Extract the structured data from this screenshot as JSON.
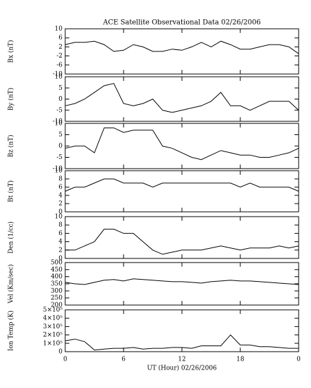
{
  "chart_data": [
    {
      "type": "line",
      "title": "ACE Satellite Observational Data   02/26/2006",
      "y_label": "Bx (nT)",
      "color": "#000000",
      "x": [
        0,
        1,
        2,
        3,
        4,
        5,
        6,
        7,
        8,
        9,
        10,
        11,
        12,
        13,
        14,
        15,
        16,
        17,
        18,
        19,
        20,
        21,
        22,
        23,
        24
      ],
      "values": [
        3,
        4,
        4,
        4.5,
        3,
        0,
        0.5,
        3,
        2,
        0,
        0,
        1,
        0.5,
        2,
        4,
        2,
        4.5,
        3,
        1,
        1,
        2,
        3,
        3,
        2,
        -1
      ],
      "xlim": [
        0,
        24
      ],
      "xticks": [
        0,
        6,
        12,
        18,
        {
          "value": 24,
          "label": "0"
        }
      ],
      "ylim": [
        -10,
        10
      ],
      "yticks": [
        -10,
        -6,
        -2,
        2,
        6,
        10
      ]
    },
    {
      "type": "line",
      "y_label": "By (nT)",
      "color": "#000000",
      "x": [
        0,
        1,
        2,
        3,
        4,
        5,
        6,
        7,
        8,
        9,
        10,
        11,
        12,
        13,
        14,
        15,
        16,
        17,
        18,
        19,
        20,
        21,
        22,
        23,
        24
      ],
      "values": [
        -3,
        -2,
        0,
        3,
        6,
        7,
        -2,
        -3,
        -2,
        0,
        -5,
        -6,
        -5,
        -4,
        -3,
        -1,
        3,
        -3,
        -3,
        -5,
        -3,
        -1,
        -1,
        -1,
        -5
      ],
      "xlim": [
        0,
        24
      ],
      "xticks": [
        0,
        6,
        12,
        18,
        {
          "value": 24,
          "label": "0"
        }
      ],
      "ylim": [
        -10,
        10
      ],
      "yticks": [
        -10,
        -5,
        0,
        5,
        10
      ]
    },
    {
      "type": "line",
      "y_label": "Bz (nT)",
      "color": "#000000",
      "x": [
        0,
        1,
        2,
        3,
        4,
        5,
        6,
        7,
        8,
        9,
        10,
        11,
        12,
        13,
        14,
        15,
        16,
        17,
        18,
        19,
        20,
        21,
        22,
        23,
        24
      ],
      "values": [
        -1,
        0,
        0,
        -3,
        8,
        8,
        6,
        7,
        7,
        7,
        0,
        -1,
        -3,
        -5,
        -6,
        -4,
        -2,
        -3,
        -4,
        -4,
        -5,
        -5,
        -4,
        -3,
        -1
      ],
      "xlim": [
        0,
        24
      ],
      "xticks": [
        0,
        6,
        12,
        18,
        {
          "value": 24,
          "label": "0"
        }
      ],
      "ylim": [
        -10,
        10
      ],
      "yticks": [
        -10,
        -5,
        0,
        5,
        10
      ]
    },
    {
      "type": "line",
      "y_label": "Bt (nT)",
      "color": "#000000",
      "x": [
        0,
        1,
        2,
        3,
        4,
        5,
        6,
        7,
        8,
        9,
        10,
        11,
        12,
        13,
        14,
        15,
        16,
        17,
        18,
        19,
        20,
        21,
        22,
        23,
        24
      ],
      "values": [
        5,
        6,
        6,
        7,
        8,
        8,
        7,
        7,
        7,
        6,
        7,
        7,
        7,
        7,
        7,
        7,
        7,
        7,
        6,
        7,
        6,
        6,
        6,
        6,
        5
      ],
      "xlim": [
        0,
        24
      ],
      "xticks": [
        0,
        6,
        12,
        18,
        {
          "value": 24,
          "label": "0"
        }
      ],
      "ylim": [
        0,
        10
      ],
      "yticks": [
        0,
        2,
        4,
        6,
        8,
        10
      ]
    },
    {
      "type": "line",
      "y_label": "Den (1/cc)",
      "color": "#000000",
      "x": [
        0,
        1,
        2,
        3,
        4,
        5,
        6,
        7,
        8,
        9,
        10,
        11,
        12,
        13,
        14,
        15,
        16,
        17,
        18,
        19,
        20,
        21,
        22,
        23,
        24
      ],
      "values": [
        2,
        2,
        3,
        4,
        7,
        7,
        6,
        6,
        4,
        2,
        1,
        1.5,
        2,
        2,
        2,
        2.5,
        3,
        2.5,
        2,
        2.5,
        2.5,
        2.5,
        3,
        2.5,
        3
      ],
      "xlim": [
        0,
        24
      ],
      "xticks": [
        0,
        6,
        12,
        18,
        {
          "value": 24,
          "label": "0"
        }
      ],
      "ylim": [
        0,
        10
      ],
      "yticks": [
        0,
        2,
        4,
        6,
        8,
        10
      ]
    },
    {
      "type": "line",
      "y_label": "Vel (Km/sec)",
      "color": "#000000",
      "x": [
        0,
        1,
        2,
        3,
        4,
        5,
        6,
        7,
        8,
        9,
        10,
        11,
        12,
        13,
        14,
        15,
        16,
        17,
        18,
        19,
        20,
        21,
        22,
        23,
        24
      ],
      "values": [
        360,
        350,
        345,
        360,
        375,
        380,
        370,
        385,
        380,
        375,
        370,
        365,
        365,
        360,
        355,
        365,
        370,
        375,
        370,
        370,
        365,
        360,
        355,
        350,
        345
      ],
      "xlim": [
        0,
        24
      ],
      "xticks": [
        0,
        6,
        12,
        18,
        {
          "value": 24,
          "label": "0"
        }
      ],
      "ylim": [
        200,
        500
      ],
      "yticks": [
        200,
        250,
        300,
        350,
        400,
        450,
        500
      ]
    },
    {
      "type": "line",
      "y_label": "Ion Temp (K)",
      "x_label": "UT (Hour)  02/26/2006",
      "color": "#000000",
      "x": [
        0,
        1,
        2,
        3,
        4,
        5,
        6,
        7,
        8,
        9,
        10,
        11,
        12,
        13,
        14,
        15,
        16,
        17,
        18,
        19,
        20,
        21,
        22,
        23,
        24
      ],
      "values": [
        130000,
        150000,
        120000,
        20000,
        30000,
        40000,
        40000,
        50000,
        30000,
        40000,
        40000,
        50000,
        50000,
        40000,
        70000,
        70000,
        70000,
        200000,
        80000,
        80000,
        60000,
        60000,
        50000,
        40000,
        40000
      ],
      "xlim": [
        0,
        24
      ],
      "xticks": [
        0,
        6,
        12,
        18,
        {
          "value": 24,
          "label": "0"
        }
      ],
      "ylim": [
        0,
        500000
      ],
      "yticks": [
        0,
        {
          "value": 100000,
          "label": "1×10⁵"
        },
        {
          "value": 200000,
          "label": "2×10⁵"
        },
        {
          "value": 300000,
          "label": "3×10⁵"
        },
        {
          "value": 400000,
          "label": "4×10⁵"
        },
        {
          "value": 500000,
          "label": "5×10⁵"
        }
      ]
    }
  ]
}
